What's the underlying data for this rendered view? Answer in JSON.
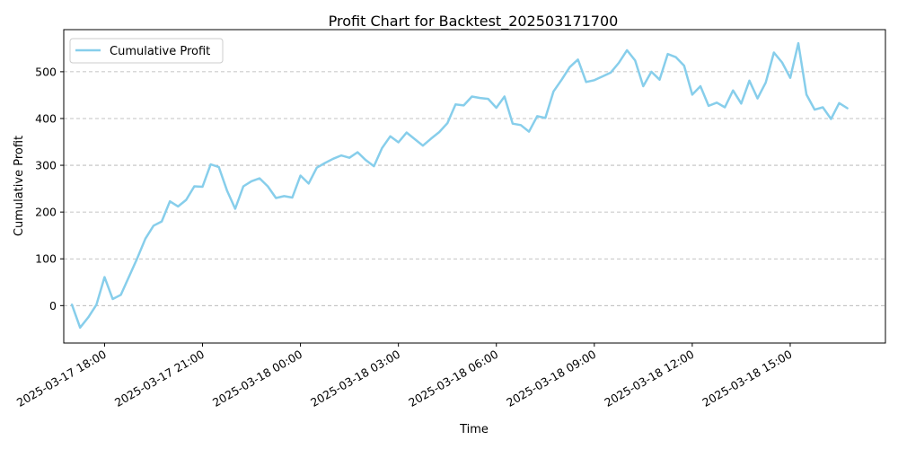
{
  "chart_data": {
    "type": "line",
    "title": "Profit Chart for Backtest_202503171700",
    "xlabel": "Time",
    "ylabel": "Cumulative Profit",
    "ylim": [
      -80,
      590
    ],
    "yticks": [
      0,
      100,
      200,
      300,
      400,
      500
    ],
    "xlim": [
      "2025-03-17 16:45",
      "2025-03-18 17:55"
    ],
    "xticks": [
      "2025-03-17 18:00",
      "2025-03-17 21:00",
      "2025-03-18 00:00",
      "2025-03-18 03:00",
      "2025-03-18 06:00",
      "2025-03-18 09:00",
      "2025-03-18 12:00",
      "2025-03-18 15:00"
    ],
    "xtick_labels": [
      "2025-03-17 18:00",
      "2025-03-17 21:00",
      "2025-03-18 00:00",
      "2025-03-18 03:00",
      "2025-03-18 06:00",
      "2025-03-18 09:00",
      "2025-03-18 12:00",
      "2025-03-18 15:00"
    ],
    "grid": "y-dashed",
    "legend_position": "top-left",
    "series": [
      {
        "name": "Cumulative Profit",
        "color": "#87CEEB",
        "x": [
          "2025-03-17 17:00",
          "2025-03-17 17:15",
          "2025-03-17 17:30",
          "2025-03-17 17:45",
          "2025-03-17 18:00",
          "2025-03-17 18:15",
          "2025-03-17 18:30",
          "2025-03-17 18:45",
          "2025-03-17 19:00",
          "2025-03-17 19:15",
          "2025-03-17 19:30",
          "2025-03-17 19:45",
          "2025-03-17 20:00",
          "2025-03-17 20:15",
          "2025-03-17 20:30",
          "2025-03-17 20:45",
          "2025-03-17 21:00",
          "2025-03-17 21:15",
          "2025-03-17 21:30",
          "2025-03-17 21:45",
          "2025-03-17 22:00",
          "2025-03-17 22:15",
          "2025-03-17 22:30",
          "2025-03-17 22:45",
          "2025-03-17 23:00",
          "2025-03-17 23:15",
          "2025-03-17 23:30",
          "2025-03-17 23:45",
          "2025-03-18 00:00",
          "2025-03-18 00:15",
          "2025-03-18 00:30",
          "2025-03-18 00:45",
          "2025-03-18 01:00",
          "2025-03-18 01:15",
          "2025-03-18 01:30",
          "2025-03-18 01:45",
          "2025-03-18 02:00",
          "2025-03-18 02:15",
          "2025-03-18 02:30",
          "2025-03-18 02:45",
          "2025-03-18 03:00",
          "2025-03-18 03:15",
          "2025-03-18 03:30",
          "2025-03-18 03:45",
          "2025-03-18 04:00",
          "2025-03-18 04:15",
          "2025-03-18 04:30",
          "2025-03-18 04:45",
          "2025-03-18 05:00",
          "2025-03-18 05:15",
          "2025-03-18 05:30",
          "2025-03-18 05:45",
          "2025-03-18 06:00",
          "2025-03-18 06:15",
          "2025-03-18 06:30",
          "2025-03-18 06:45",
          "2025-03-18 07:00",
          "2025-03-18 07:15",
          "2025-03-18 07:30",
          "2025-03-18 07:45",
          "2025-03-18 08:00",
          "2025-03-18 08:15",
          "2025-03-18 08:30",
          "2025-03-18 08:45",
          "2025-03-18 09:00",
          "2025-03-18 09:15",
          "2025-03-18 09:30",
          "2025-03-18 09:45",
          "2025-03-18 10:00",
          "2025-03-18 10:15",
          "2025-03-18 10:30",
          "2025-03-18 10:45",
          "2025-03-18 11:00",
          "2025-03-18 11:15",
          "2025-03-18 11:30",
          "2025-03-18 11:45",
          "2025-03-18 12:00",
          "2025-03-18 12:15",
          "2025-03-18 12:30",
          "2025-03-18 12:45",
          "2025-03-18 13:00",
          "2025-03-18 13:15",
          "2025-03-18 13:30",
          "2025-03-18 13:45",
          "2025-03-18 14:00",
          "2025-03-18 14:15",
          "2025-03-18 14:30",
          "2025-03-18 14:45",
          "2025-03-18 15:00",
          "2025-03-18 15:15",
          "2025-03-18 15:30",
          "2025-03-18 15:45",
          "2025-03-18 16:00",
          "2025-03-18 16:15",
          "2025-03-18 16:30",
          "2025-03-18 16:45",
          "2025-03-18 17:00",
          "2025-03-18 17:15",
          "2025-03-18 17:30"
        ],
        "y": [
          2,
          -47,
          -25,
          2,
          61,
          14,
          23,
          62,
          101,
          143,
          171,
          180,
          223,
          212,
          226,
          255,
          254,
          302,
          296,
          246,
          207,
          255,
          266,
          272,
          255,
          230,
          234,
          231,
          278,
          261,
          295,
          305,
          314,
          321,
          316,
          328,
          311,
          298,
          337,
          362,
          349,
          370,
          356,
          342,
          357,
          371,
          390,
          430,
          428,
          447,
          444,
          442,
          423,
          447,
          389,
          386,
          372,
          405,
          401,
          458,
          483,
          510,
          526,
          478,
          482,
          490,
          498,
          519,
          546,
          524,
          469,
          500,
          483,
          538,
          531,
          513,
          451,
          469,
          427,
          434,
          424,
          460,
          432,
          481,
          443,
          477,
          541,
          520,
          487,
          561,
          451,
          419,
          424,
          399,
          433,
          422,
          null,
          null,
          null
        ]
      }
    ]
  }
}
